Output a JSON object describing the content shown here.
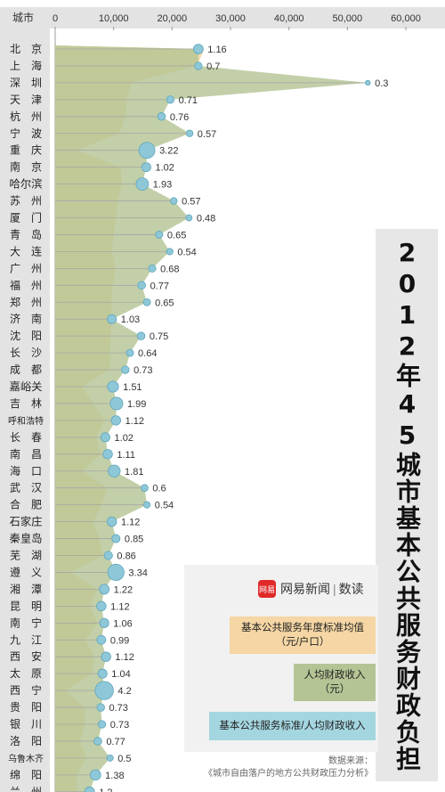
{
  "title": "2012年45城市基本公共服务财政负担",
  "brand": {
    "logo_text": "网易",
    "name": "网易新闻",
    "section": "数读"
  },
  "legend": {
    "standard_line1": "基本公共服务年度标准均值",
    "standard_line2": "（元/户口）",
    "revenue_line1": "人均财政收入",
    "revenue_line2": "（元）",
    "ratio": "基本公共服务标准/人均财政收入"
  },
  "source": {
    "line1": "数据来源：",
    "line2": "《城市自由落户的地方公共财政压力分析》"
  },
  "colors": {
    "standard": "#f5d6a4",
    "revenue": "#b5c495",
    "ratio_dot": "#8ec8d8",
    "ratio_dot_stroke": "#5ea5bd",
    "axis_bar": "#e3e3e3"
  },
  "chart_data": {
    "type": "area",
    "axis_header": "城市",
    "x_ticks": [
      "0",
      "10,000",
      "20,000",
      "30,000",
      "40,000",
      "50,000",
      "60,000"
    ],
    "xlim": [
      0,
      60000
    ],
    "cities": [
      "北京",
      "上海",
      "深圳",
      "天津",
      "杭州",
      "宁波",
      "重庆",
      "南京",
      "哈尔滨",
      "苏州",
      "厦门",
      "青岛",
      "大连",
      "广州",
      "福州",
      "郑州",
      "济南",
      "沈阳",
      "长沙",
      "成都",
      "嘉峪关",
      "吉林",
      "呼和浩特",
      "长春",
      "南昌",
      "海口",
      "武汉",
      "合肥",
      "石家庄",
      "秦皇岛",
      "芜湖",
      "遵义",
      "湘潭",
      "昆明",
      "南宁",
      "九江",
      "西安",
      "太原",
      "西宁",
      "贵阳",
      "银川",
      "洛阳",
      "乌鲁木齐",
      "绵阳",
      "兰州"
    ],
    "series": [
      {
        "name": "基本公共服务年度标准均值（元/户口）",
        "values": [
          25500,
          24300,
          13000,
          12300,
          12000,
          11000,
          3600,
          11200,
          11400,
          10700,
          10400,
          10000,
          9700,
          10400,
          9800,
          9600,
          9700,
          9500,
          9400,
          9300,
          4600,
          6500,
          8500,
          7000,
          7800,
          4700,
          8900,
          8000,
          6500,
          7500,
          8200,
          2600,
          7200,
          6000,
          7200,
          5200,
          6700,
          6300,
          1800,
          5000,
          5100,
          4200,
          5400,
          3600,
          3800
        ]
      },
      {
        "name": "人均财政收入（元）",
        "values": [
          24500,
          24500,
          53500,
          19700,
          18200,
          23000,
          15700,
          15600,
          14900,
          20300,
          22900,
          17800,
          19600,
          16600,
          14800,
          15700,
          9700,
          14700,
          12800,
          12000,
          9900,
          10500,
          10400,
          8600,
          9000,
          10100,
          15300,
          15700,
          9700,
          10400,
          9100,
          10400,
          8400,
          7900,
          8400,
          7900,
          8700,
          8100,
          8400,
          7800,
          8000,
          7300,
          9400,
          6900,
          5900
        ]
      },
      {
        "name": "基本公共服务标准/人均财政收入",
        "values": [
          1.16,
          0.7,
          0.3,
          0.71,
          0.76,
          0.57,
          3.22,
          1.02,
          1.93,
          0.57,
          0.48,
          0.65,
          0.54,
          0.68,
          0.77,
          0.65,
          1.03,
          0.75,
          0.64,
          0.73,
          1.51,
          1.99,
          1.12,
          1.02,
          1.11,
          1.81,
          0.6,
          0.54,
          1.12,
          0.85,
          0.86,
          3.34,
          1.22,
          1.12,
          1.06,
          0.99,
          1.12,
          1.04,
          4.2,
          0.73,
          0.73,
          0.77,
          0.5,
          1.38,
          1.2
        ]
      }
    ]
  }
}
